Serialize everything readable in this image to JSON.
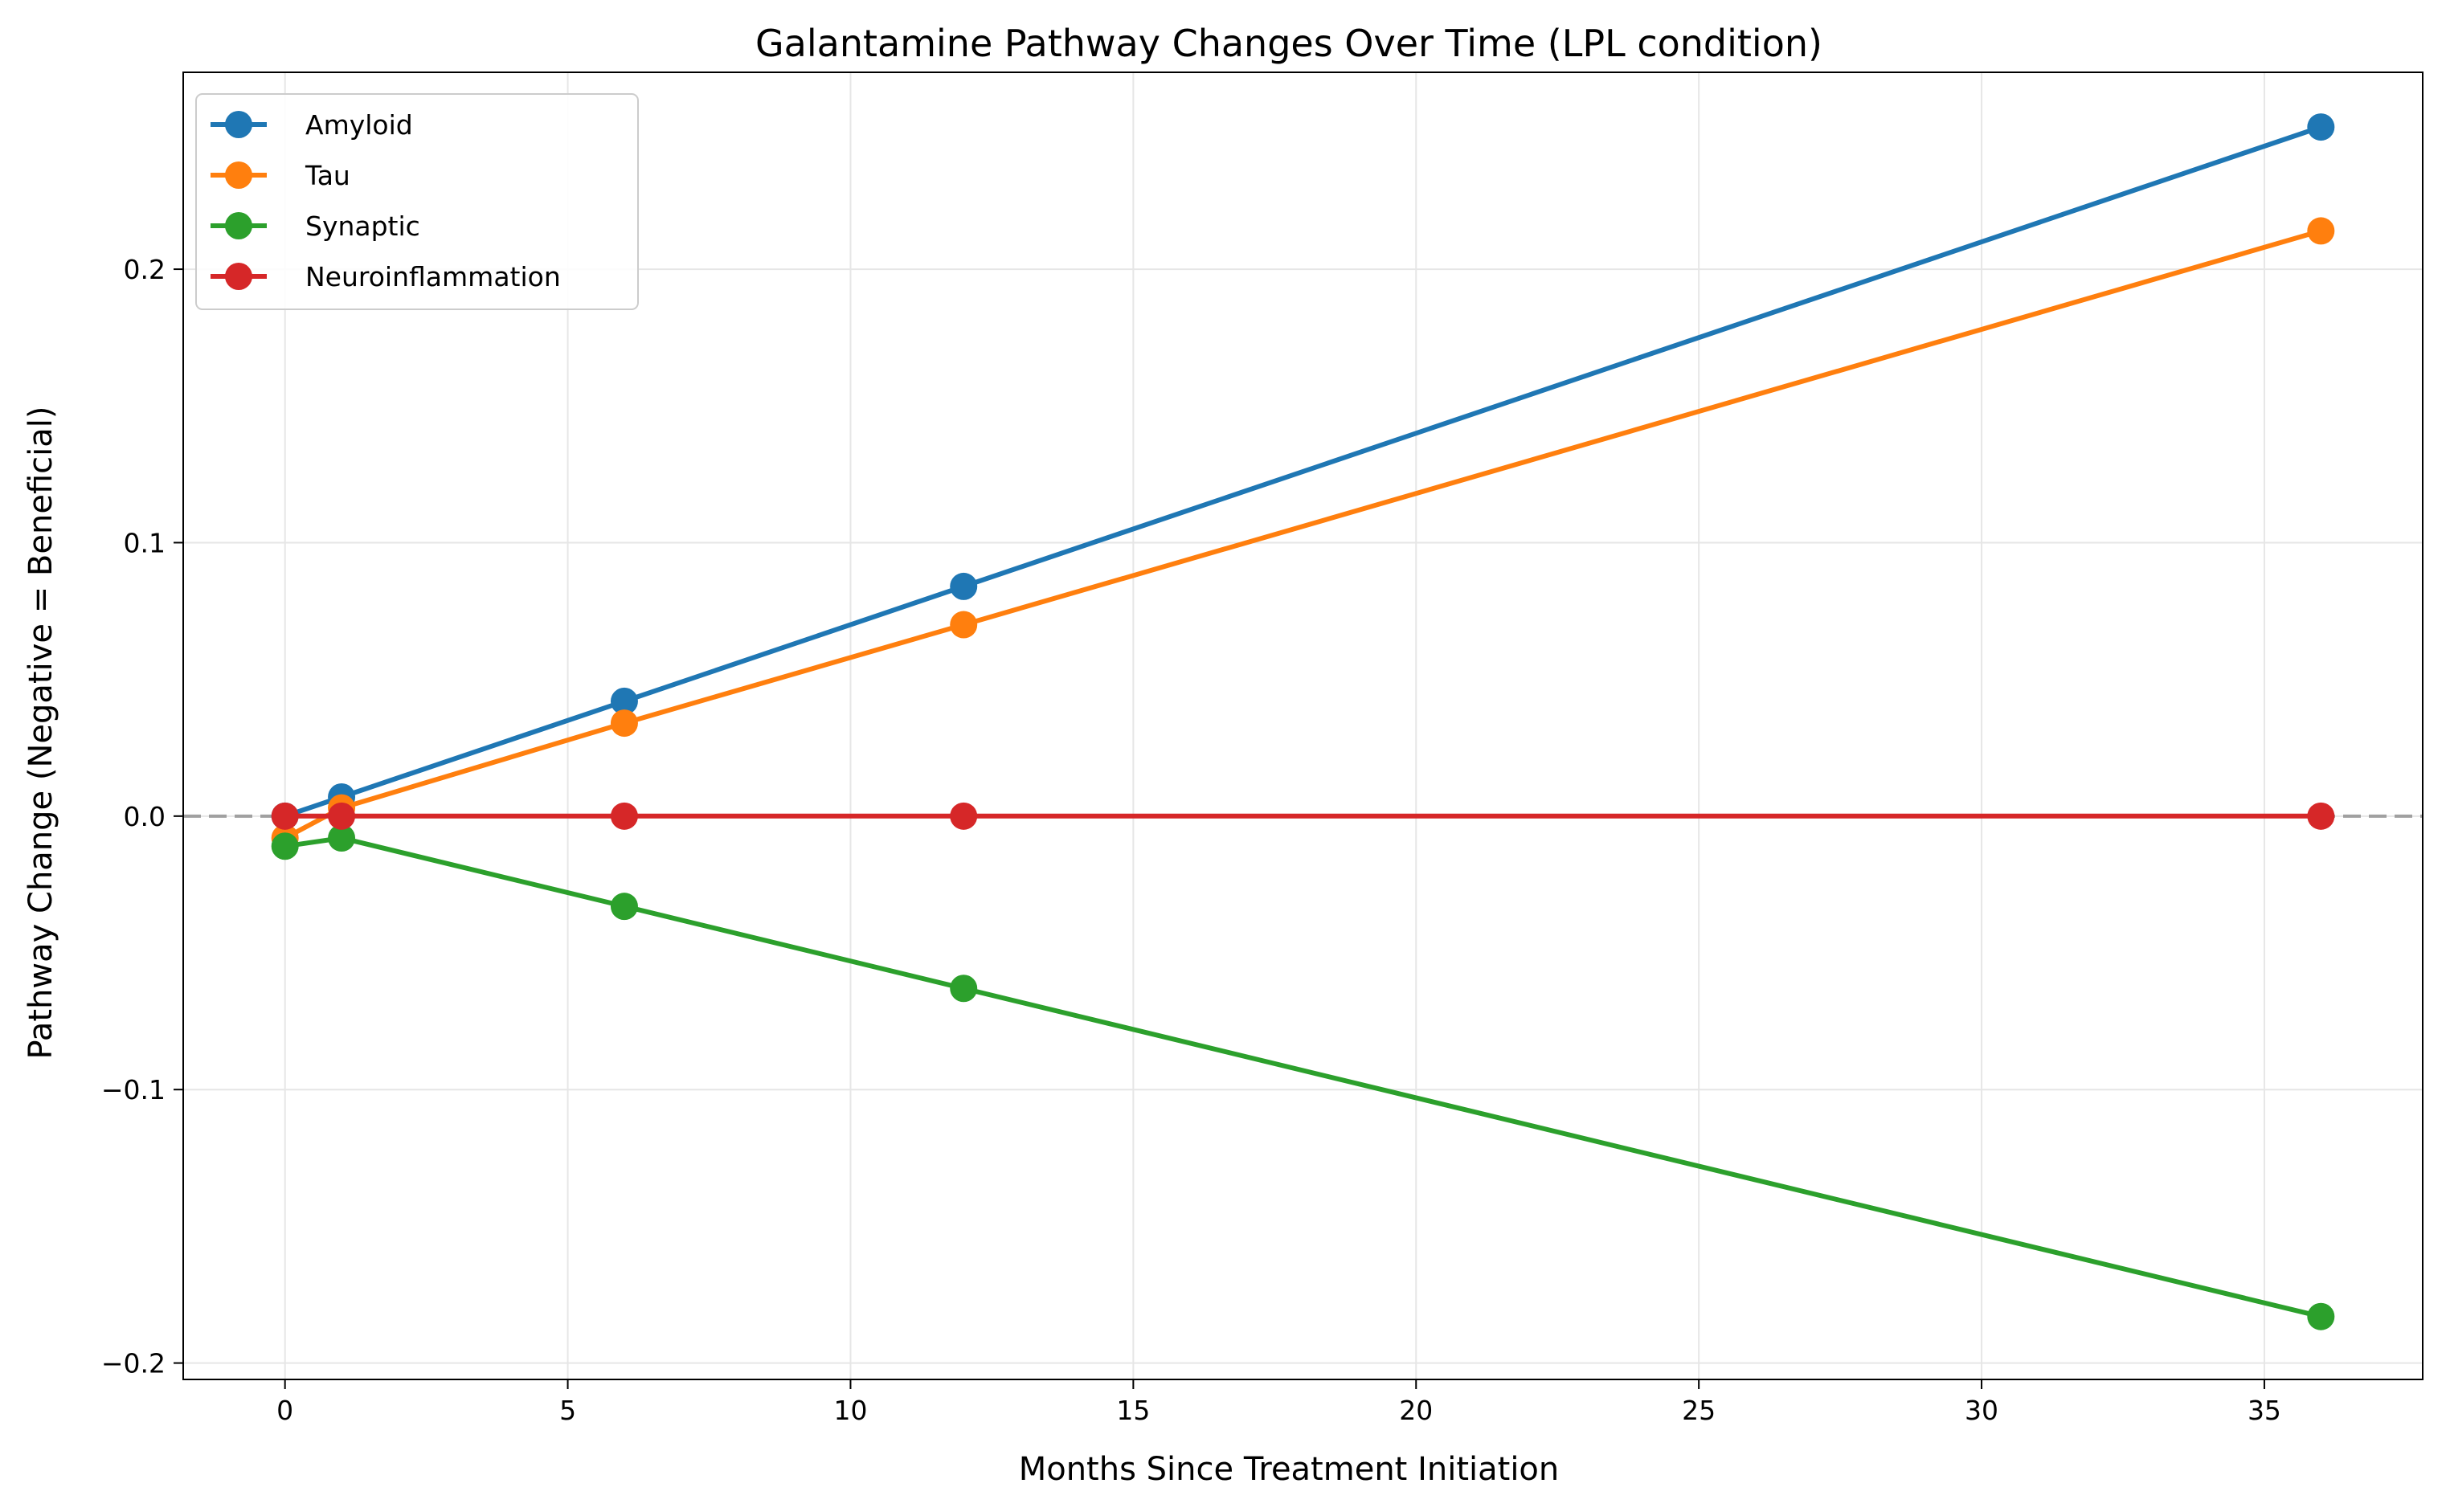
{
  "chart_data": {
    "type": "line",
    "title": "Galantamine Pathway Changes Over Time (LPL condition)",
    "xlabel": "Months Since Treatment Initiation",
    "ylabel": "Pathway Change (Negative = Beneficial)",
    "xlim": [
      -1.8,
      37.8
    ],
    "ylim": [
      -0.206,
      0.272
    ],
    "xticks": [
      0,
      5,
      10,
      15,
      20,
      25,
      30,
      35
    ],
    "xtick_labels": [
      "0",
      "5",
      "10",
      "15",
      "20",
      "25",
      "30",
      "35"
    ],
    "yticks": [
      -0.2,
      -0.1,
      0.0,
      0.1,
      0.2
    ],
    "ytick_labels": [
      "−0.2",
      "−0.1",
      "0.0",
      "0.1",
      "0.2"
    ],
    "grid": true,
    "reference_line": {
      "y": 0,
      "style": "dashed",
      "color": "#a0a0a0"
    },
    "legend_position": "top-left",
    "x": [
      0,
      1,
      6,
      12,
      36
    ],
    "series": [
      {
        "name": "Amyloid",
        "color": "#1f77b4",
        "values": [
          0.0,
          0.007,
          0.042,
          0.084,
          0.252
        ]
      },
      {
        "name": "Tau",
        "color": "#ff7f0e",
        "values": [
          -0.008,
          0.003,
          0.034,
          0.07,
          0.214
        ]
      },
      {
        "name": "Synaptic",
        "color": "#2ca02c",
        "values": [
          -0.011,
          -0.008,
          -0.033,
          -0.063,
          -0.183
        ]
      },
      {
        "name": "Neuroinflammation",
        "color": "#d62728",
        "values": [
          0.0,
          0.0,
          0.0,
          0.0,
          0.0
        ]
      }
    ]
  }
}
